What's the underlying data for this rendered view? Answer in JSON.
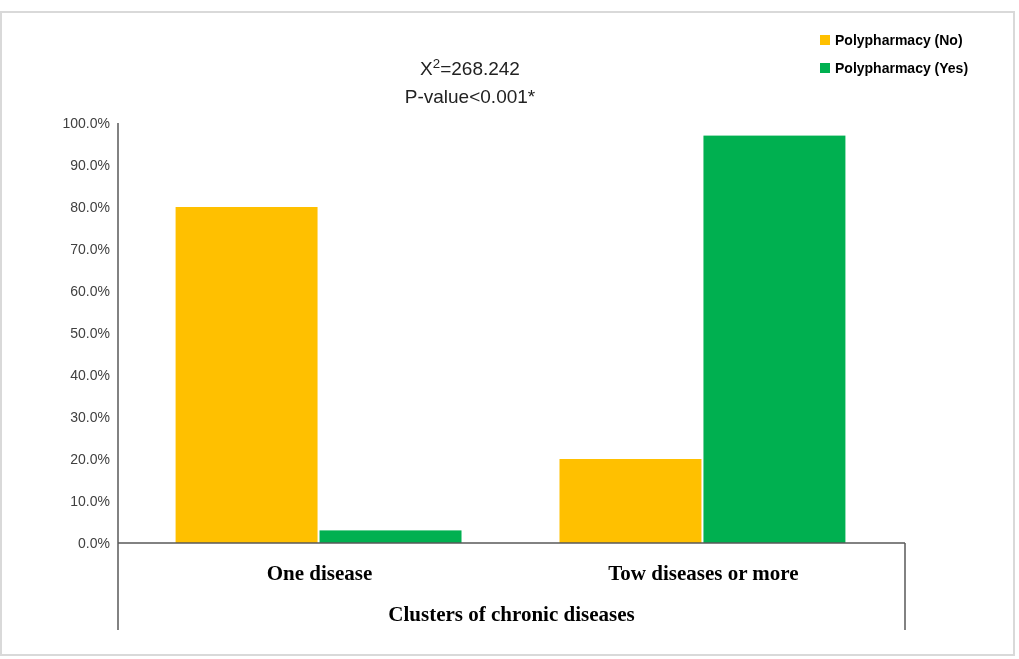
{
  "chart_data": {
    "type": "bar",
    "xlabel": "Clusters of chronic diseases",
    "categories": [
      "One disease",
      "Tow diseases or more"
    ],
    "series": [
      {
        "name": "Polypharmacy (No)",
        "color": "#ffc000",
        "values": [
          80,
          20
        ]
      },
      {
        "name": "Polypharmacy (Yes)",
        "color": "#00b050",
        "values": [
          3,
          97
        ]
      }
    ],
    "ylim": [
      0,
      100
    ],
    "yticks": [
      {
        "value": 0,
        "label": "0.0%"
      },
      {
        "value": 10,
        "label": "10.0%"
      },
      {
        "value": 20,
        "label": "20.0%"
      },
      {
        "value": 30,
        "label": "30.0%"
      },
      {
        "value": 40,
        "label": "40.0%"
      },
      {
        "value": 50,
        "label": "50.0%"
      },
      {
        "value": 60,
        "label": "60.0%"
      },
      {
        "value": 70,
        "label": "70.0%"
      },
      {
        "value": 80,
        "label": "80.0%"
      },
      {
        "value": 90,
        "label": "90.0%"
      },
      {
        "value": 100,
        "label": "100.0%"
      }
    ],
    "annotations": [
      "X$^{2}$=268.242",
      "P-value<0.001*"
    ],
    "legend": "top right"
  }
}
